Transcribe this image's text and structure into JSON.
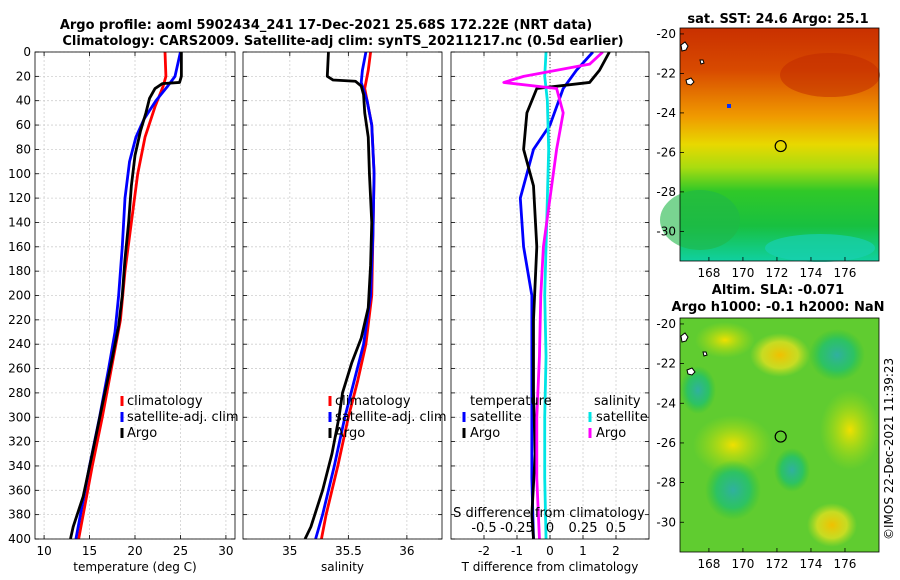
{
  "title": {
    "line1": "Argo profile: aoml 5902434_241 17-Dec-2021 25.68S 172.22E (NRT data)",
    "line2": "Climatology: CARS2009. Satellite-adj clim: synTS_20211217.nc (0.5d earlier)"
  },
  "colors": {
    "climatology": "#ff0000",
    "satellite": "#0000ff",
    "argo": "#000000",
    "sal_satellite": "#00e5e5",
    "sal_argo": "#ff00ff"
  },
  "chart_data": [
    {
      "type": "line",
      "name": "temperature",
      "xlabel": "temperature (deg C)",
      "ylabel": "",
      "xlim": [
        9,
        31
      ],
      "ylim": [
        400,
        0
      ],
      "xticks": [
        10,
        15,
        20,
        25,
        30
      ],
      "yticks": [
        0,
        20,
        40,
        60,
        80,
        100,
        120,
        140,
        160,
        180,
        200,
        220,
        240,
        260,
        280,
        300,
        320,
        340,
        360,
        380,
        400
      ],
      "grid": true,
      "legend": {
        "position": "lower-right",
        "entries": [
          "climatology",
          "satellite-adj. clim",
          "Argo"
        ]
      },
      "series": [
        {
          "name": "climatology",
          "color": "#ff0000",
          "points": [
            [
              23.3,
              0
            ],
            [
              23.4,
              20
            ],
            [
              23.1,
              28
            ],
            [
              22.2,
              45
            ],
            [
              21.1,
              70
            ],
            [
              20.3,
              100
            ],
            [
              19.6,
              140
            ],
            [
              18.9,
              180
            ],
            [
              18.4,
              220
            ],
            [
              17.4,
              260
            ],
            [
              16.4,
              300
            ],
            [
              15.3,
              340
            ],
            [
              14.3,
              380
            ],
            [
              13.8,
              400
            ]
          ]
        },
        {
          "name": "satellite-adj. clim",
          "color": "#0000ff",
          "points": [
            [
              25.0,
              0
            ],
            [
              24.7,
              10
            ],
            [
              24.4,
              20
            ],
            [
              23.6,
              28
            ],
            [
              22.3,
              40
            ],
            [
              21.0,
              55
            ],
            [
              20.1,
              70
            ],
            [
              19.4,
              90
            ],
            [
              18.9,
              120
            ],
            [
              18.6,
              160
            ],
            [
              18.2,
              200
            ],
            [
              17.8,
              230
            ],
            [
              17.1,
              260
            ],
            [
              16.1,
              300
            ],
            [
              15.0,
              340
            ],
            [
              14.0,
              380
            ],
            [
              13.5,
              400
            ]
          ]
        },
        {
          "name": "Argo",
          "color": "#000000",
          "points": [
            [
              25.1,
              0
            ],
            [
              25.1,
              20
            ],
            [
              24.9,
              25
            ],
            [
              23.0,
              26
            ],
            [
              22.2,
              30
            ],
            [
              21.6,
              38
            ],
            [
              21.2,
              50
            ],
            [
              20.6,
              65
            ],
            [
              20.0,
              85
            ],
            [
              19.6,
              110
            ],
            [
              19.3,
              140
            ],
            [
              18.9,
              170
            ],
            [
              18.6,
              200
            ],
            [
              18.2,
              225
            ],
            [
              17.4,
              255
            ],
            [
              16.4,
              290
            ],
            [
              15.3,
              330
            ],
            [
              14.3,
              365
            ],
            [
              13.2,
              390
            ],
            [
              12.9,
              400
            ]
          ]
        }
      ]
    },
    {
      "type": "line",
      "name": "salinity",
      "xlabel": "salinity",
      "xlim": [
        34.6,
        36.3
      ],
      "ylim": [
        400,
        0
      ],
      "xticks": [
        35,
        35.5,
        36
      ],
      "grid": true,
      "legend": {
        "position": "lower-right",
        "entries": [
          "climatology",
          "satellite-adj. clim",
          "Argo"
        ]
      },
      "series": [
        {
          "name": "climatology",
          "color": "#ff0000",
          "points": [
            [
              35.69,
              0
            ],
            [
              35.67,
              15
            ],
            [
              35.64,
              30
            ],
            [
              35.7,
              60
            ],
            [
              35.72,
              100
            ],
            [
              35.71,
              150
            ],
            [
              35.7,
              200
            ],
            [
              35.65,
              240
            ],
            [
              35.58,
              270
            ],
            [
              35.5,
              300
            ],
            [
              35.41,
              340
            ],
            [
              35.31,
              380
            ],
            [
              35.27,
              400
            ]
          ]
        },
        {
          "name": "satellite-adj. clim",
          "color": "#0000ff",
          "points": [
            [
              35.65,
              0
            ],
            [
              35.62,
              15
            ],
            [
              35.61,
              25
            ],
            [
              35.66,
              40
            ],
            [
              35.7,
              60
            ],
            [
              35.72,
              100
            ],
            [
              35.71,
              150
            ],
            [
              35.69,
              200
            ],
            [
              35.63,
              240
            ],
            [
              35.55,
              270
            ],
            [
              35.47,
              300
            ],
            [
              35.38,
              340
            ],
            [
              35.28,
              380
            ],
            [
              35.22,
              400
            ]
          ]
        },
        {
          "name": "Argo",
          "color": "#000000",
          "points": [
            [
              35.33,
              0
            ],
            [
              35.32,
              20
            ],
            [
              35.37,
              23
            ],
            [
              35.56,
              24
            ],
            [
              35.61,
              28
            ],
            [
              35.63,
              35
            ],
            [
              35.64,
              50
            ],
            [
              35.67,
              70
            ],
            [
              35.68,
              100
            ],
            [
              35.7,
              140
            ],
            [
              35.69,
              175
            ],
            [
              35.67,
              210
            ],
            [
              35.61,
              235
            ],
            [
              35.53,
              255
            ],
            [
              35.45,
              280
            ],
            [
              35.42,
              300
            ],
            [
              35.36,
              330
            ],
            [
              35.28,
              360
            ],
            [
              35.18,
              390
            ],
            [
              35.13,
              400
            ]
          ]
        }
      ]
    },
    {
      "type": "line",
      "name": "difference from climatology",
      "xlabel": "T difference from climatology",
      "xlim": [
        -3,
        3
      ],
      "ylim": [
        400,
        0
      ],
      "xticks": [
        -2,
        -1,
        0,
        1,
        2
      ],
      "top_axis": {
        "label": "S difference from climatology",
        "ticks": [
          "-0.5",
          "-0.25",
          "0",
          "0.25",
          "0.5"
        ],
        "values": [
          -0.5,
          -0.25,
          0,
          0.25,
          0.5
        ],
        "xlim": [
          -0.75,
          0.75
        ]
      },
      "grid": true,
      "legend": {
        "position": "lower-center",
        "temperature_header": "temperature",
        "salinity_header": "salinity",
        "entries": [
          "satellite",
          "Argo",
          "satellite",
          "Argo"
        ]
      },
      "series": [
        {
          "name": "T satellite",
          "color": "#0000ff",
          "points": [
            [
              1.3,
              0
            ],
            [
              0.8,
              15
            ],
            [
              0.4,
              30
            ],
            [
              0,
              60
            ],
            [
              -0.5,
              80
            ],
            [
              -0.9,
              120
            ],
            [
              -0.8,
              160
            ],
            [
              -0.55,
              200
            ],
            [
              -0.55,
              280
            ],
            [
              -0.55,
              350
            ],
            [
              -0.5,
              400
            ]
          ]
        },
        {
          "name": "T Argo",
          "color": "#000000",
          "points": [
            [
              1.8,
              0
            ],
            [
              1.5,
              15
            ],
            [
              1.2,
              25
            ],
            [
              -0.4,
              30
            ],
            [
              -0.7,
              50
            ],
            [
              -0.8,
              80
            ],
            [
              -0.5,
              110
            ],
            [
              -0.4,
              160
            ],
            [
              -0.5,
              220
            ],
            [
              -0.5,
              280
            ],
            [
              -0.45,
              330
            ],
            [
              -0.55,
              380
            ],
            [
              -0.5,
              400
            ]
          ]
        },
        {
          "name": "S satellite",
          "color": "#00e5e5",
          "points": [
            [
              -0.03,
              0
            ],
            [
              -0.04,
              20
            ],
            [
              -0.02,
              40
            ],
            [
              -0.01,
              80
            ],
            [
              -0.02,
              120
            ],
            [
              -0.03,
              160
            ],
            [
              -0.04,
              200
            ],
            [
              -0.03,
              250
            ],
            [
              -0.04,
              300
            ],
            [
              -0.04,
              350
            ],
            [
              -0.03,
              400
            ]
          ]
        },
        {
          "name": "S Argo",
          "color": "#ff00ff",
          "points": [
            [
              0.4,
              0
            ],
            [
              0.3,
              10
            ],
            [
              -0.2,
              20
            ],
            [
              -0.35,
              25
            ],
            [
              0.05,
              30
            ],
            [
              0.1,
              50
            ],
            [
              0.05,
              80
            ],
            [
              0.0,
              120
            ],
            [
              -0.05,
              160
            ],
            [
              -0.07,
              200
            ],
            [
              -0.08,
              250
            ],
            [
              -0.1,
              300
            ],
            [
              -0.1,
              350
            ],
            [
              -0.08,
              400
            ]
          ]
        }
      ]
    },
    {
      "type": "heatmap",
      "name": "sst map",
      "title": "sat. SST: 24.6 Argo: 25.1",
      "xlim": [
        166.3,
        178
      ],
      "ylim": [
        -31.5,
        -19.7
      ],
      "xticks": [
        168,
        170,
        172,
        174,
        176
      ],
      "yticks": [
        -20,
        -22,
        -24,
        -26,
        -28,
        -30
      ],
      "marker": {
        "lon": 172.22,
        "lat": -25.68
      }
    },
    {
      "type": "heatmap",
      "name": "sla map",
      "title_line1": "Altim. SLA: -0.071",
      "title_line2": "Argo h1000: -0.1 h2000: NaN",
      "xlim": [
        166.3,
        178
      ],
      "ylim": [
        -31.5,
        -19.7
      ],
      "xticks": [
        168,
        170,
        172,
        174,
        176
      ],
      "yticks": [
        -20,
        -22,
        -24,
        -26,
        -28,
        -30
      ],
      "marker": {
        "lon": 172.22,
        "lat": -25.68
      }
    }
  ],
  "credit": "©IMOS 22-Dec-2021 11:39:23"
}
